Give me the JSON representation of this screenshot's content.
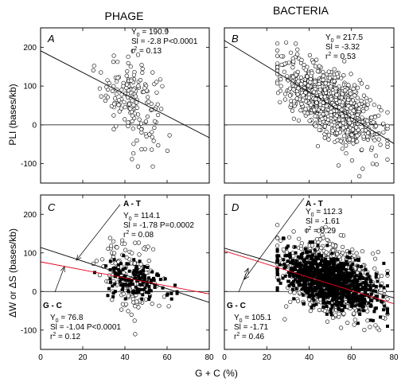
{
  "column_titles": [
    "PHAGE",
    "BACTERIA"
  ],
  "x_axis_label": "G + C  (%)",
  "y_label_top": "PLI  (bases/kb)",
  "y_label_bottom": "ΔW or ΔS (bases/kb)",
  "chart_data": [
    {
      "id": "A",
      "type": "scatter",
      "panel_label": "A",
      "xlim": [
        0,
        80
      ],
      "ylim": [
        -150,
        250
      ],
      "x_ticks": [
        0,
        20,
        40,
        60,
        80
      ],
      "y_ticks": [
        -100,
        0,
        100,
        200
      ],
      "show_x_tick_labels": false,
      "show_y_tick_labels": true,
      "zero_line": true,
      "stats_lines": [
        "Y0 = 190.9",
        "Sl = -2.8  P<0.0001",
        "r2 = 0.13"
      ],
      "series": [
        {
          "marker": "open-circle",
          "n_points": 170,
          "center": [
            43,
            70
          ],
          "spread": [
            7,
            55
          ],
          "x_range": [
            25,
            73
          ]
        }
      ],
      "regression_lines": [
        {
          "intercept": 190.9,
          "slope": -2.8,
          "color": "#000000",
          "x_range": [
            0,
            80
          ]
        }
      ]
    },
    {
      "id": "B",
      "type": "scatter",
      "panel_label": "B",
      "xlim": [
        0,
        80
      ],
      "ylim": [
        -150,
        250
      ],
      "x_ticks": [
        0,
        20,
        40,
        60,
        80
      ],
      "y_ticks": [
        -100,
        0,
        100,
        200
      ],
      "show_x_tick_labels": false,
      "show_y_tick_labels": false,
      "zero_line": true,
      "stats_lines": [
        "Y0 = 217.5",
        "Sl = -3.32",
        "r2 = 0.53"
      ],
      "series": [
        {
          "marker": "open-circle",
          "n_points": 950,
          "center": [
            50,
            55
          ],
          "spread": [
            11,
            40
          ],
          "x_range": [
            25,
            77
          ]
        }
      ],
      "regression_lines": [
        {
          "intercept": 217.5,
          "slope": -3.32,
          "color": "#000000",
          "x_range": [
            0,
            80
          ]
        }
      ]
    },
    {
      "id": "C",
      "type": "scatter",
      "panel_label": "C",
      "xlim": [
        0,
        80
      ],
      "ylim": [
        -150,
        250
      ],
      "x_ticks": [
        0,
        20,
        40,
        60,
        80
      ],
      "y_ticks": [
        -100,
        0,
        100,
        200
      ],
      "show_x_tick_labels": true,
      "show_y_tick_labels": true,
      "zero_line": true,
      "annotations": [
        {
          "label": "A - T",
          "lines": [
            "Y0 = 114.1",
            "Sl = -1.78  P=0.0002",
            "r2 = 0.08"
          ]
        },
        {
          "label": "G - C",
          "lines": [
            "Y0 = 76.8",
            "Sl = -1.04  P<0.0001",
            "r2 = 0.12"
          ]
        }
      ],
      "series": [
        {
          "name": "A - T",
          "marker": "open-circle",
          "n_points": 170,
          "center": [
            43,
            38
          ],
          "spread": [
            7,
            45
          ],
          "x_range": [
            25,
            73
          ]
        },
        {
          "name": "G - C",
          "marker": "filled-square",
          "n_points": 140,
          "center": [
            44,
            30
          ],
          "spread": [
            7,
            25
          ],
          "x_range": [
            25,
            73
          ]
        }
      ],
      "regression_lines": [
        {
          "series": "A - T",
          "intercept": 114.1,
          "slope": -1.78,
          "color": "#000000",
          "x_range": [
            0,
            80
          ]
        },
        {
          "series": "G - C",
          "intercept": 76.8,
          "slope": -1.04,
          "color": "#e8001c",
          "x_range": [
            0,
            80
          ]
        }
      ]
    },
    {
      "id": "D",
      "type": "scatter",
      "panel_label": "D",
      "xlim": [
        0,
        80
      ],
      "ylim": [
        -150,
        250
      ],
      "x_ticks": [
        0,
        20,
        40,
        60,
        80
      ],
      "y_ticks": [
        -100,
        0,
        100,
        200
      ],
      "show_x_tick_labels": true,
      "show_y_tick_labels": false,
      "zero_line": true,
      "annotations": [
        {
          "label": "A - T",
          "lines": [
            "Y0 = 112.3",
            "Sl = -1.61",
            "r2 = 0.29"
          ]
        },
        {
          "label": "G - C",
          "lines": [
            "Y0 = 105.1",
            "Sl = -1.71",
            "r2 = 0.46"
          ]
        }
      ],
      "series": [
        {
          "name": "A - T",
          "marker": "open-circle",
          "n_points": 900,
          "center": [
            50,
            35
          ],
          "spread": [
            11,
            45
          ],
          "x_range": [
            25,
            77
          ]
        },
        {
          "name": "G - C",
          "marker": "filled-square",
          "n_points": 900,
          "center": [
            50,
            25
          ],
          "spread": [
            11,
            32
          ],
          "x_range": [
            25,
            77
          ]
        }
      ],
      "regression_lines": [
        {
          "series": "A - T",
          "intercept": 112.3,
          "slope": -1.61,
          "color": "#000000",
          "x_range": [
            0,
            80
          ]
        },
        {
          "series": "G - C",
          "intercept": 105.1,
          "slope": -1.71,
          "color": "#e8001c",
          "x_range": [
            0,
            80
          ]
        }
      ]
    }
  ]
}
